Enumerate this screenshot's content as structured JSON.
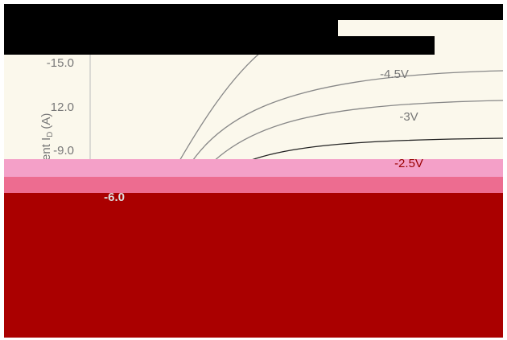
{
  "axis": {
    "label": {
      "text": "ent I",
      "subscript": "D",
      "unit": "(A)"
    },
    "ticks": [
      "-15.0",
      "12.0",
      "-9.0",
      "-6.0"
    ]
  },
  "curves": [
    "-4.5V",
    "-3V",
    "-2.5V"
  ]
}
